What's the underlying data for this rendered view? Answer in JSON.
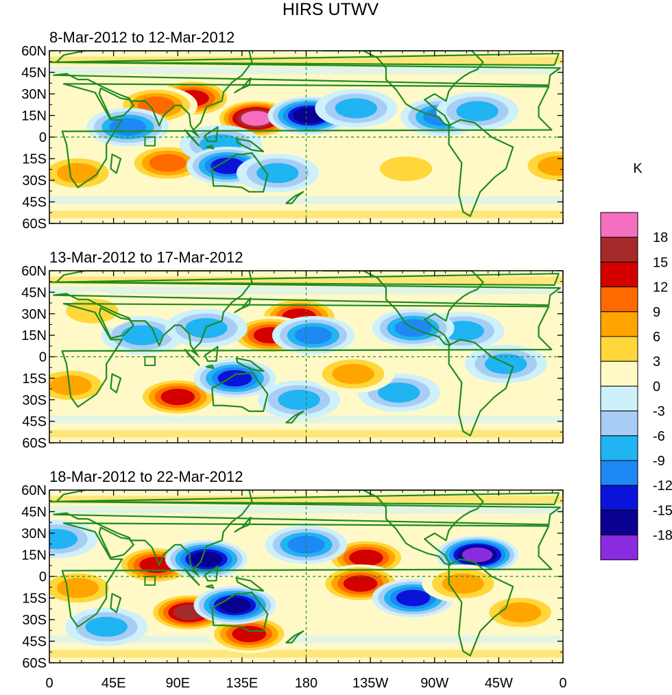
{
  "figure": {
    "title": "HIRS UTWV"
  },
  "panels": [
    {
      "title": "8-Mar-2012 to 12-Mar-2012"
    },
    {
      "title": "13-Mar-2012 to 17-Mar-2012"
    },
    {
      "title": "18-Mar-2012 to 22-Mar-2012"
    }
  ],
  "axes": {
    "lat_labels": [
      "60N",
      "45N",
      "30N",
      "15N",
      "0",
      "15S",
      "30S",
      "45S",
      "60S"
    ],
    "lon_labels": [
      "0",
      "45E",
      "90E",
      "135E",
      "180",
      "135W",
      "90W",
      "45W",
      "0"
    ]
  },
  "colorbar": {
    "unit": "K",
    "tick_labels": [
      "18",
      "15",
      "12",
      "9",
      "6",
      "3",
      "0",
      "-3",
      "-6",
      "-9",
      "-12",
      "-15",
      "-18"
    ],
    "colors": [
      "#f46fbf",
      "#a52a2a",
      "#d40000",
      "#ff6a00",
      "#ffa500",
      "#ffd73a",
      "#fff9c8",
      "#cdf0fb",
      "#a8cdf5",
      "#20b4f2",
      "#1e88f5",
      "#0a13d8",
      "#0a0090",
      "#8a2be2"
    ]
  },
  "map_style": {
    "coast_color": "#1f8a1f",
    "equator_dash_color": "#1f8a1f"
  },
  "anomalies": [
    [
      {
        "lon": 145,
        "lat": 13,
        "v": 18
      },
      {
        "lon": 100,
        "lat": 27,
        "v": 13
      },
      {
        "lon": 75,
        "lat": 22,
        "v": 10
      },
      {
        "lon": 83,
        "lat": -18,
        "v": 10
      },
      {
        "lon": 120,
        "lat": -5,
        "v": -8
      },
      {
        "lon": 55,
        "lat": 7,
        "v": -9
      },
      {
        "lon": 182,
        "lat": 15,
        "v": -15
      },
      {
        "lon": 125,
        "lat": -20,
        "v": -14
      },
      {
        "lon": 20,
        "lat": -25,
        "v": 7
      },
      {
        "lon": 275,
        "lat": 14,
        "v": -9
      },
      {
        "lon": 300,
        "lat": 18,
        "v": -8
      },
      {
        "lon": 357,
        "lat": -20,
        "v": 7
      },
      {
        "lon": 250,
        "lat": -22,
        "v": 5
      },
      {
        "lon": 215,
        "lat": 20,
        "v": -7
      },
      {
        "lon": 160,
        "lat": -25,
        "v": -6
      }
    ],
    [
      {
        "lon": 175,
        "lat": 28,
        "v": 13
      },
      {
        "lon": 155,
        "lat": 15,
        "v": 12
      },
      {
        "lon": 90,
        "lat": -28,
        "v": 13
      },
      {
        "lon": 130,
        "lat": -15,
        "v": -14
      },
      {
        "lon": 175,
        "lat": -30,
        "v": -6
      },
      {
        "lon": 185,
        "lat": 15,
        "v": -10
      },
      {
        "lon": 290,
        "lat": 18,
        "v": -8
      },
      {
        "lon": 255,
        "lat": 20,
        "v": -9
      },
      {
        "lon": 15,
        "lat": -20,
        "v": 6
      },
      {
        "lon": 65,
        "lat": 15,
        "v": -6
      },
      {
        "lon": 245,
        "lat": -25,
        "v": -8
      },
      {
        "lon": 30,
        "lat": 32,
        "v": 5
      },
      {
        "lon": 213,
        "lat": -12,
        "v": 7
      },
      {
        "lon": 320,
        "lat": -5,
        "v": -6
      },
      {
        "lon": 110,
        "lat": 20,
        "v": -6
      }
    ],
    [
      {
        "lon": 75,
        "lat": 8,
        "v": 12
      },
      {
        "lon": 98,
        "lat": -25,
        "v": 15
      },
      {
        "lon": 140,
        "lat": -40,
        "v": 13
      },
      {
        "lon": 130,
        "lat": -20,
        "v": -15
      },
      {
        "lon": 110,
        "lat": 12,
        "v": -15
      },
      {
        "lon": 222,
        "lat": 13,
        "v": 13
      },
      {
        "lon": 218,
        "lat": -5,
        "v": 12
      },
      {
        "lon": 300,
        "lat": 15,
        "v": -18
      },
      {
        "lon": 255,
        "lat": -15,
        "v": -12
      },
      {
        "lon": 180,
        "lat": 22,
        "v": -9
      },
      {
        "lon": 5,
        "lat": 26,
        "v": -8
      },
      {
        "lon": 20,
        "lat": -8,
        "v": 6
      },
      {
        "lon": 290,
        "lat": -5,
        "v": 8
      },
      {
        "lon": 40,
        "lat": -35,
        "v": -6
      },
      {
        "lon": 330,
        "lat": -25,
        "v": 6
      }
    ]
  ]
}
